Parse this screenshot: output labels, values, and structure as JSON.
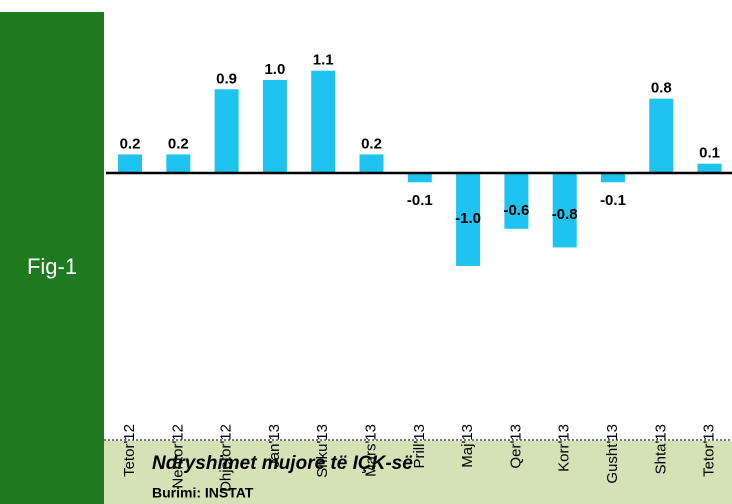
{
  "figure_label": "Fig-1",
  "chart_data": {
    "type": "bar",
    "categories": [
      "Tetor'12",
      "Nentor'12",
      "Dhjetor'12",
      "Jan'13",
      "Shku'13",
      "Mars'13",
      "Prill'13",
      "Maj'13",
      "Qer'13",
      "Korr'13",
      "Gusht'13",
      "Shta'13",
      "Tetor'13"
    ],
    "values": [
      0.2,
      0.2,
      0.9,
      1.0,
      1.1,
      0.2,
      -0.1,
      -1.0,
      -0.6,
      -0.8,
      -0.1,
      0.8,
      0.1
    ],
    "value_labels": [
      "0.2",
      "0.2",
      "0.9",
      "1.0",
      "1.1",
      "0.2",
      "-0.1",
      "-1.0",
      "-0.6",
      "-0.8",
      "-0.1",
      "0.8",
      "0.1"
    ],
    "color": "#1fc3ef"
  },
  "caption": "Ndryshimet mujore të IÇK-së",
  "source": "Burimi: INSTAT"
}
